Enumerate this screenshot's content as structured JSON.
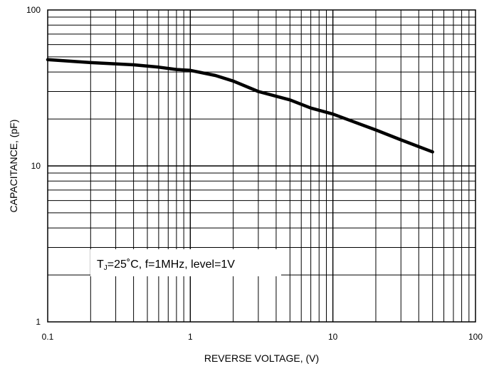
{
  "chart_data": {
    "type": "line",
    "title": "",
    "xlabel": "REVERSE VOLTAGE, (V)",
    "ylabel": "CAPACITANCE, (pF)",
    "x_scale": "log",
    "y_scale": "log",
    "xlim": [
      0.1,
      100
    ],
    "ylim": [
      1,
      100
    ],
    "x_ticks": [
      "0.1",
      "1",
      "10",
      "100"
    ],
    "y_ticks": [
      "1",
      "10",
      "100"
    ],
    "grid": true,
    "series": [
      {
        "color": "#000000",
        "x": [
          0.1,
          0.2,
          0.4,
          0.6,
          0.8,
          1.0,
          1.5,
          2,
          3,
          5,
          7,
          10,
          20,
          30,
          50
        ],
        "y": [
          48,
          46,
          44.5,
          43,
          41.5,
          41,
          38,
          35,
          30,
          26.5,
          23.5,
          21.5,
          17,
          14.7,
          12.3
        ]
      }
    ],
    "annotation": {
      "prefix": "T",
      "subscript": "J",
      "suffix": "=25˚C, f=1MHz, level=1V"
    }
  }
}
